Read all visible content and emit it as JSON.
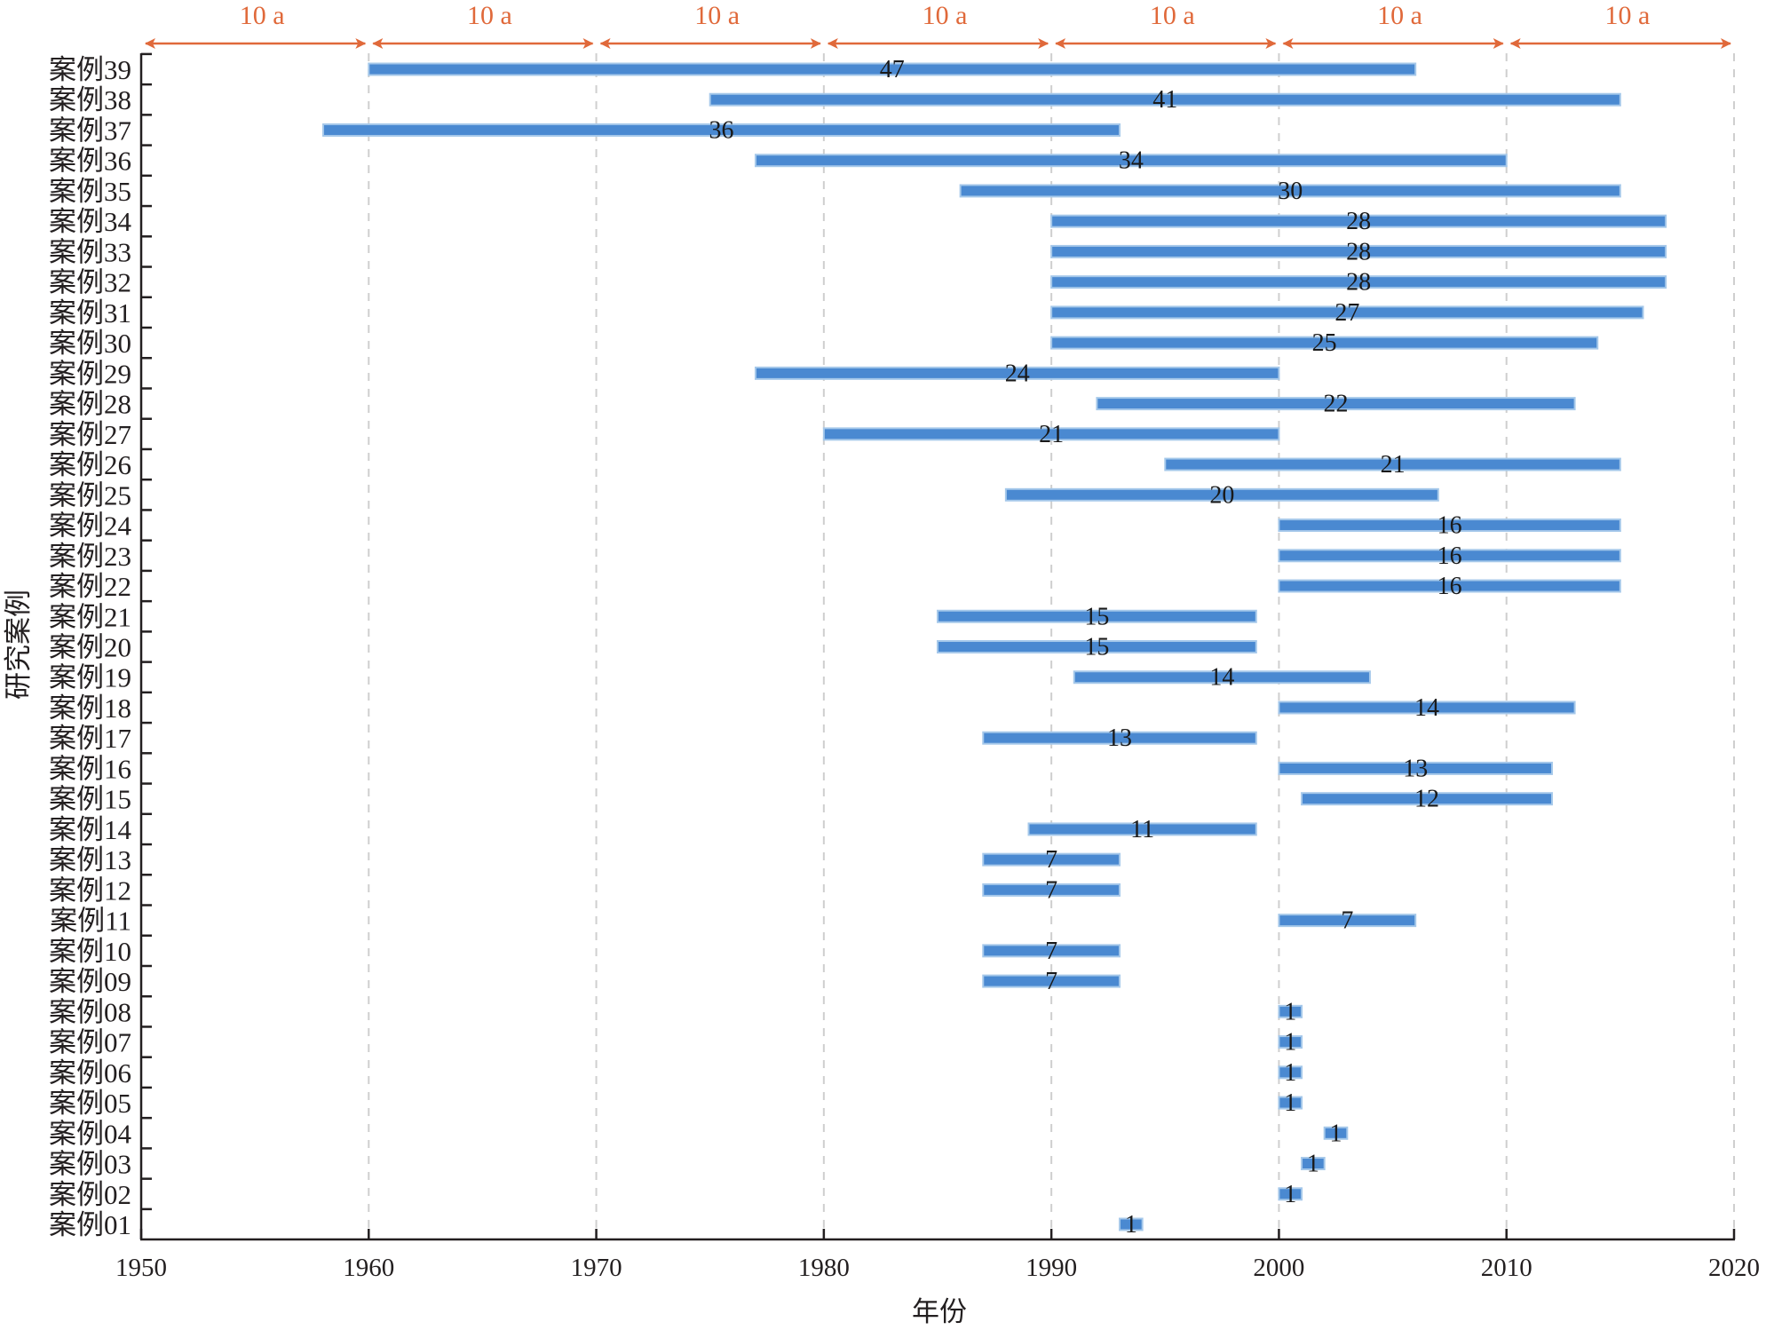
{
  "chart_data": {
    "type": "gantt-bar",
    "title": "",
    "xlabel": "年份",
    "ylabel": "研究案例",
    "xlim": [
      1950,
      2020
    ],
    "xticks": [
      1950,
      1960,
      1970,
      1980,
      1990,
      2000,
      2010,
      2020
    ],
    "xtick_labels": [
      "1950",
      "1960",
      "1970",
      "1980",
      "1990",
      "2000",
      "2010",
      "2020"
    ],
    "grid": "vertical dashed at decades",
    "bar_color": "#4a89d1",
    "bar_border_color": "#a5c8ea",
    "annotation_color": "#e0693a",
    "decade_spans": [
      {
        "start": 1950,
        "end": 1960,
        "label": "10 a"
      },
      {
        "start": 1960,
        "end": 1970,
        "label": "10 a"
      },
      {
        "start": 1970,
        "end": 1980,
        "label": "10 a"
      },
      {
        "start": 1980,
        "end": 1990,
        "label": "10 a"
      },
      {
        "start": 1990,
        "end": 2000,
        "label": "10 a"
      },
      {
        "start": 2000,
        "end": 2010,
        "label": "10 a"
      },
      {
        "start": 2010,
        "end": 2020,
        "label": "10 a"
      }
    ],
    "cases": [
      {
        "name": "案例01",
        "start": 1993,
        "end": 1994,
        "label": "1"
      },
      {
        "name": "案例02",
        "start": 2000,
        "end": 2001,
        "label": "1"
      },
      {
        "name": "案例03",
        "start": 2001,
        "end": 2002,
        "label": "1"
      },
      {
        "name": "案例04",
        "start": 2002,
        "end": 2003,
        "label": "1"
      },
      {
        "name": "案例05",
        "start": 2000,
        "end": 2001,
        "label": "1"
      },
      {
        "name": "案例06",
        "start": 2000,
        "end": 2001,
        "label": "1"
      },
      {
        "name": "案例07",
        "start": 2000,
        "end": 2001,
        "label": "1"
      },
      {
        "name": "案例08",
        "start": 2000,
        "end": 2001,
        "label": "1"
      },
      {
        "name": "案例09",
        "start": 1987,
        "end": 1993,
        "label": "7"
      },
      {
        "name": "案例10",
        "start": 1987,
        "end": 1993,
        "label": "7"
      },
      {
        "name": "案例11",
        "start": 2000,
        "end": 2006,
        "label": "7"
      },
      {
        "name": "案例12",
        "start": 1987,
        "end": 1993,
        "label": "7"
      },
      {
        "name": "案例13",
        "start": 1987,
        "end": 1993,
        "label": "7"
      },
      {
        "name": "案例14",
        "start": 1989,
        "end": 1999,
        "label": "11"
      },
      {
        "name": "案例15",
        "start": 2001,
        "end": 2012,
        "label": "12"
      },
      {
        "name": "案例16",
        "start": 2000,
        "end": 2012,
        "label": "13"
      },
      {
        "name": "案例17",
        "start": 1987,
        "end": 1999,
        "label": "13"
      },
      {
        "name": "案例18",
        "start": 2000,
        "end": 2013,
        "label": "14"
      },
      {
        "name": "案例19",
        "start": 1991,
        "end": 2004,
        "label": "14"
      },
      {
        "name": "案例20",
        "start": 1985,
        "end": 1999,
        "label": "15"
      },
      {
        "name": "案例21",
        "start": 1985,
        "end": 1999,
        "label": "15"
      },
      {
        "name": "案例22",
        "start": 2000,
        "end": 2015,
        "label": "16"
      },
      {
        "name": "案例23",
        "start": 2000,
        "end": 2015,
        "label": "16"
      },
      {
        "name": "案例24",
        "start": 2000,
        "end": 2015,
        "label": "16"
      },
      {
        "name": "案例25",
        "start": 1988,
        "end": 2007,
        "label": "20"
      },
      {
        "name": "案例26",
        "start": 1995,
        "end": 2015,
        "label": "21"
      },
      {
        "name": "案例27",
        "start": 1980,
        "end": 2000,
        "label": "21"
      },
      {
        "name": "案例28",
        "start": 1992,
        "end": 2013,
        "label": "22"
      },
      {
        "name": "案例29",
        "start": 1977,
        "end": 2000,
        "label": "24"
      },
      {
        "name": "案例30",
        "start": 1990,
        "end": 2014,
        "label": "25"
      },
      {
        "name": "案例31",
        "start": 1990,
        "end": 2016,
        "label": "27"
      },
      {
        "name": "案例32",
        "start": 1990,
        "end": 2017,
        "label": "28"
      },
      {
        "name": "案例33",
        "start": 1990,
        "end": 2017,
        "label": "28"
      },
      {
        "name": "案例34",
        "start": 1990,
        "end": 2017,
        "label": "28"
      },
      {
        "name": "案例35",
        "start": 1986,
        "end": 2015,
        "label": "30"
      },
      {
        "name": "案例36",
        "start": 1977,
        "end": 2010,
        "label": "34"
      },
      {
        "name": "案例37",
        "start": 1958,
        "end": 1993,
        "label": "36"
      },
      {
        "name": "案例38",
        "start": 1975,
        "end": 2015,
        "label": "41"
      },
      {
        "name": "案例39",
        "start": 1960,
        "end": 2006,
        "label": "47"
      }
    ]
  }
}
